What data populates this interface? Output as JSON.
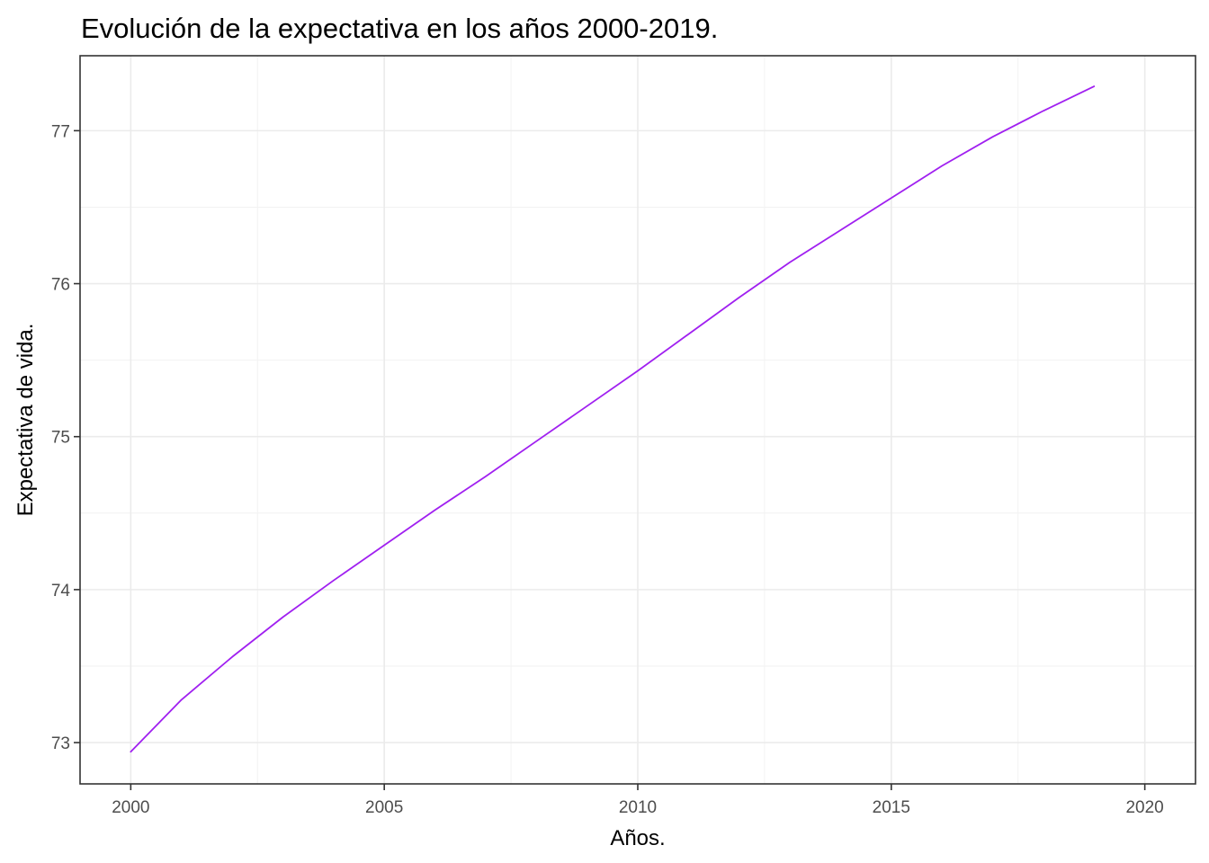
{
  "chart_data": {
    "type": "line",
    "title": "Evolución de la expectativa en los años 2000-2019.",
    "xlabel": "Años.",
    "ylabel": "Expectativa de vida.",
    "xlim": [
      1999,
      2021
    ],
    "ylim": [
      72.73,
      77.49
    ],
    "x_ticks": [
      2000,
      2005,
      2010,
      2015,
      2020
    ],
    "x_minor_ticks": [
      2002.5,
      2007.5,
      2012.5,
      2017.5
    ],
    "x_tick_labels": [
      "2000",
      "2005",
      "2010",
      "2015",
      "2020"
    ],
    "y_ticks": [
      73,
      74,
      75,
      76,
      77
    ],
    "y_minor_ticks": [
      73.5,
      74.5,
      75.5,
      76.5
    ],
    "y_tick_labels": [
      "73",
      "74",
      "75",
      "76",
      "77"
    ],
    "grid": true,
    "legend": "none",
    "line_color": "#a020f0",
    "series": [
      {
        "x": [
          2000,
          2001,
          2002,
          2003,
          2004,
          2005,
          2006,
          2007,
          2008,
          2009,
          2010,
          2011,
          2012,
          2013,
          2014,
          2015,
          2016,
          2017,
          2018,
          2019
        ],
        "values": [
          72.94,
          73.28,
          73.56,
          73.82,
          74.06,
          74.29,
          74.52,
          74.74,
          74.97,
          75.2,
          75.43,
          75.67,
          75.91,
          76.14,
          76.35,
          76.56,
          76.77,
          76.96,
          77.13,
          77.29
        ]
      }
    ]
  }
}
